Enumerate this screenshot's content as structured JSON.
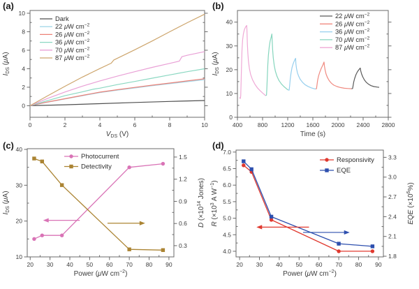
{
  "chart_data": [
    {
      "id": "a",
      "panel_label": "(a)",
      "type": "line",
      "xlabel": "*V*_DS_ (V)",
      "ylabel": "*I*_DS_ (*μ*A)",
      "xlim": [
        0,
        10
      ],
      "ylim": [
        -1.25,
        10.3
      ],
      "xticks": [
        "0",
        "2",
        "4",
        "6",
        "8",
        "10"
      ],
      "yticks": [
        "0",
        "2",
        "4",
        "6",
        "8",
        "10"
      ],
      "legend_position": "top-left",
      "series": [
        {
          "name": "Dark",
          "color": "#4f4f4f",
          "points": [
            [
              0,
              0
            ],
            [
              2,
              0.1
            ],
            [
              4,
              0.22
            ],
            [
              6,
              0.35
            ],
            [
              8,
              0.46
            ],
            [
              10,
              0.56
            ]
          ]
        },
        {
          "name": "22 *μ*W cm^−2^",
          "color": "#a5d8ea",
          "points": [
            [
              0,
              0
            ],
            [
              1,
              0.38
            ],
            [
              2,
              0.73
            ],
            [
              3,
              1.08
            ],
            [
              4,
              1.42
            ],
            [
              5,
              1.68
            ],
            [
              6,
              1.92
            ],
            [
              7,
              2.16
            ],
            [
              8,
              2.38
            ],
            [
              9,
              2.6
            ],
            [
              10,
              2.82
            ]
          ]
        },
        {
          "name": "26 *μ*W cm^−2^",
          "color": "#ec8177",
          "points": [
            [
              0,
              0
            ],
            [
              1,
              0.4
            ],
            [
              2,
              0.76
            ],
            [
              3,
              1.12
            ],
            [
              4,
              1.47
            ],
            [
              5,
              1.73
            ],
            [
              6,
              1.98
            ],
            [
              7,
              2.22
            ],
            [
              8,
              2.45
            ],
            [
              9,
              2.68
            ],
            [
              10,
              2.92
            ]
          ]
        },
        {
          "name": "36 *μ*W cm^−2^",
          "color": "#8bd8c2",
          "points": [
            [
              0,
              0
            ],
            [
              1,
              0.55
            ],
            [
              2,
              1.08
            ],
            [
              3,
              1.5
            ],
            [
              3.6,
              1.78
            ],
            [
              4,
              1.9
            ],
            [
              5,
              2.28
            ],
            [
              6,
              2.62
            ],
            [
              7,
              2.98
            ],
            [
              8,
              3.33
            ],
            [
              9,
              3.68
            ],
            [
              10,
              4.0
            ]
          ]
        },
        {
          "name": "70 *μ*W cm^−2^",
          "color": "#e9a0d6",
          "points": [
            [
              0,
              0
            ],
            [
              1,
              0.78
            ],
            [
              2,
              1.48
            ],
            [
              3,
              2.12
            ],
            [
              4,
              2.68
            ],
            [
              5,
              3.2
            ],
            [
              6,
              3.68
            ],
            [
              7,
              4.15
            ],
            [
              8,
              4.58
            ],
            [
              8.55,
              4.82
            ],
            [
              8.7,
              5.3
            ],
            [
              9,
              5.45
            ],
            [
              10,
              5.85
            ]
          ]
        },
        {
          "name": "87 *μ*W cm^−2^",
          "color": "#cda56c",
          "points": [
            [
              0,
              0
            ],
            [
              1,
              1.06
            ],
            [
              2,
              2.1
            ],
            [
              3,
              3.1
            ],
            [
              4,
              4.02
            ],
            [
              4.65,
              4.6
            ],
            [
              4.8,
              4.95
            ],
            [
              6,
              6.05
            ],
            [
              7,
              7.0
            ],
            [
              8,
              8.0
            ],
            [
              9,
              8.97
            ],
            [
              10,
              9.9
            ]
          ]
        }
      ]
    },
    {
      "id": "b",
      "panel_label": "(b)",
      "type": "line",
      "xlabel": "Time (s)",
      "ylabel": "*I*_DS_ (*μ*A)",
      "xlim": [
        400,
        2800
      ],
      "ylim": [
        0,
        44.9
      ],
      "xticks": [
        "400",
        "800",
        "1200",
        "1600",
        "2000",
        "2400",
        "2800"
      ],
      "yticks": [
        "0",
        "10",
        "20",
        "30",
        "40"
      ],
      "legend_position": "top-right",
      "series": [
        {
          "name": "22 *μ*W cm^−2^",
          "color": "#5a5a5a",
          "points": [
            [
              2215,
              12
            ],
            [
              2232,
              12.1
            ],
            [
              2240,
              13.2
            ],
            [
              2250,
              14.8
            ],
            [
              2265,
              16.3
            ],
            [
              2285,
              17.9
            ],
            [
              2310,
              19.2
            ],
            [
              2335,
              20.1
            ],
            [
              2355,
              20.7
            ],
            [
              2362,
              19.5
            ],
            [
              2375,
              18.2
            ],
            [
              2395,
              16.9
            ],
            [
              2420,
              15.7
            ],
            [
              2450,
              14.7
            ],
            [
              2485,
              13.9
            ],
            [
              2525,
              13.3
            ],
            [
              2570,
              12.9
            ],
            [
              2620,
              12.7
            ],
            [
              2655,
              12.6
            ]
          ]
        },
        {
          "name": "26 *μ*W cm^−2^",
          "color": "#f08a80",
          "points": [
            [
              1645,
              11.9
            ],
            [
              1658,
              12
            ],
            [
              1665,
              13.5
            ],
            [
              1675,
              15.5
            ],
            [
              1690,
              17.3
            ],
            [
              1710,
              19
            ],
            [
              1735,
              20.7
            ],
            [
              1760,
              22
            ],
            [
              1778,
              23.2
            ],
            [
              1784,
              21.5
            ],
            [
              1795,
              19.8
            ],
            [
              1810,
              18.2
            ],
            [
              1832,
              16.7
            ],
            [
              1860,
              15.4
            ],
            [
              1895,
              14.3
            ],
            [
              1935,
              13.5
            ],
            [
              1985,
              12.9
            ],
            [
              2040,
              12.5
            ],
            [
              2100,
              12.2
            ],
            [
              2160,
              12.1
            ],
            [
              2215,
              12
            ]
          ]
        },
        {
          "name": "36 *μ*W cm^−2^",
          "color": "#96cfee",
          "points": [
            [
              1205,
              11.5
            ],
            [
              1222,
              11.4
            ],
            [
              1230,
              13
            ],
            [
              1240,
              16
            ],
            [
              1252,
              18.5
            ],
            [
              1268,
              20.8
            ],
            [
              1288,
              22.6
            ],
            [
              1310,
              24
            ],
            [
              1325,
              24.8
            ],
            [
              1330,
              22.5
            ],
            [
              1340,
              20.5
            ],
            [
              1355,
              18.7
            ],
            [
              1375,
              17.2
            ],
            [
              1400,
              15.9
            ],
            [
              1435,
              14.7
            ],
            [
              1475,
              13.7
            ],
            [
              1520,
              13
            ],
            [
              1570,
              12.4
            ],
            [
              1620,
              12
            ],
            [
              1645,
              11.9
            ]
          ]
        },
        {
          "name": "70 *μ*W cm^−2^",
          "color": "#85d5bd",
          "points": [
            [
              848,
              9.1
            ],
            [
              862,
              9.3
            ],
            [
              868,
              12
            ],
            [
              875,
              17
            ],
            [
              883,
              22
            ],
            [
              892,
              26
            ],
            [
              905,
              29.5
            ],
            [
              920,
              32
            ],
            [
              940,
              34
            ],
            [
              948,
              35
            ],
            [
              953,
              32
            ],
            [
              960,
              28.5
            ],
            [
              970,
              25
            ],
            [
              985,
              21.8
            ],
            [
              1005,
              19.3
            ],
            [
              1030,
              17.2
            ],
            [
              1060,
              15.5
            ],
            [
              1100,
              14
            ],
            [
              1140,
              12.9
            ],
            [
              1180,
              12
            ],
            [
              1205,
              11.5
            ]
          ]
        },
        {
          "name": "87 *μ*W cm^−2^",
          "color": "#efa9d6",
          "points": [
            [
              430,
              8.3
            ],
            [
              447,
              7.9
            ],
            [
              452,
              9
            ],
            [
              458,
              14
            ],
            [
              465,
              22
            ],
            [
              472,
              28
            ],
            [
              482,
              32.5
            ],
            [
              495,
              35
            ],
            [
              510,
              36.8
            ],
            [
              530,
              38
            ],
            [
              548,
              38.6
            ],
            [
              552,
              36
            ],
            [
              558,
              31
            ],
            [
              565,
              27
            ],
            [
              575,
              23.5
            ],
            [
              590,
              20.5
            ],
            [
              610,
              18
            ],
            [
              640,
              15.8
            ],
            [
              680,
              13.8
            ],
            [
              720,
              12.3
            ],
            [
              760,
              11.2
            ],
            [
              800,
              10.2
            ],
            [
              830,
              9.5
            ],
            [
              848,
              9.1
            ]
          ]
        }
      ]
    },
    {
      "id": "c",
      "panel_label": "(c)",
      "type": "line",
      "xlabel": "Power (*μ*W cm^−2^)",
      "ylabel": "*I*_DS_ (*μ*A)",
      "ylabel_right": "*D* (×10^14^ Jones)",
      "xlim": [
        18.5,
        92.5
      ],
      "ylim": [
        10,
        40.2
      ],
      "ylim_right": [
        0.148,
        1.613
      ],
      "xticks": [
        "20",
        "30",
        "40",
        "50",
        "60",
        "70",
        "80",
        "90"
      ],
      "yticks": [
        "10",
        "20",
        "30",
        "40"
      ],
      "yticks_right": [
        "0.3",
        "0.6",
        "0.9",
        "1.2",
        "1.5"
      ],
      "legend_position": "top-center",
      "series": [
        {
          "name": "Photocurrent",
          "axis": "left",
          "color": "#d973b6",
          "marker": "circle",
          "x": [
            22,
            26,
            36,
            70,
            87
          ],
          "values": [
            15,
            16,
            16,
            35,
            36
          ]
        },
        {
          "name": "Detectivity",
          "axis": "right",
          "color": "#ab8433",
          "marker": "square",
          "x": [
            22,
            26,
            36,
            70,
            87
          ],
          "values": [
            1.48,
            1.44,
            1.12,
            0.25,
            0.24
          ]
        }
      ],
      "annotations": [
        {
          "y": 20.2,
          "from": 45,
          "to": 26.5,
          "color": "#d973b6"
        },
        {
          "y": 19.4,
          "from": 59,
          "to": 78,
          "color": "#ab8433"
        }
      ]
    },
    {
      "id": "d",
      "panel_label": "(d)",
      "type": "line",
      "xlabel": "Power (*μ*W cm^−2^)",
      "ylabel": "*R* (×10^3^ A W^−1^)",
      "ylabel_right": "*EQE* (×10^6^%)",
      "xlim": [
        18.2,
        92.5
      ],
      "ylim": [
        3.83,
        7.06
      ],
      "ylim_right": [
        1.79,
        3.41
      ],
      "xticks": [
        "20",
        "30",
        "40",
        "50",
        "60",
        "70",
        "80",
        "90"
      ],
      "yticks": [
        "4.0",
        "4.5",
        "5.0",
        "5.5",
        "6.0",
        "6.5",
        "7.0"
      ],
      "yticks_right": [
        "1.8",
        "2.1",
        "2.4",
        "2.7",
        "3.0",
        "3.3"
      ],
      "legend_position": "top-right",
      "series": [
        {
          "name": "Responsivity",
          "axis": "left",
          "color": "#e0392f",
          "marker": "circle",
          "x": [
            22,
            26,
            36,
            70,
            87
          ],
          "values": [
            6.6,
            6.4,
            4.95,
            4.0,
            4.0
          ]
        },
        {
          "name": "EQE",
          "axis": "right",
          "color": "#2d4fae",
          "marker": "square",
          "x": [
            22,
            26,
            36,
            70,
            87
          ],
          "values": [
            3.24,
            3.12,
            2.4,
            1.99,
            1.95
          ]
        }
      ],
      "annotations": [
        {
          "y": 4.73,
          "from": 55,
          "to": 28.5,
          "color": "#e0392f"
        },
        {
          "y": 4.57,
          "from": 52,
          "to": 75.5,
          "color": "#2d4fae"
        }
      ]
    }
  ]
}
